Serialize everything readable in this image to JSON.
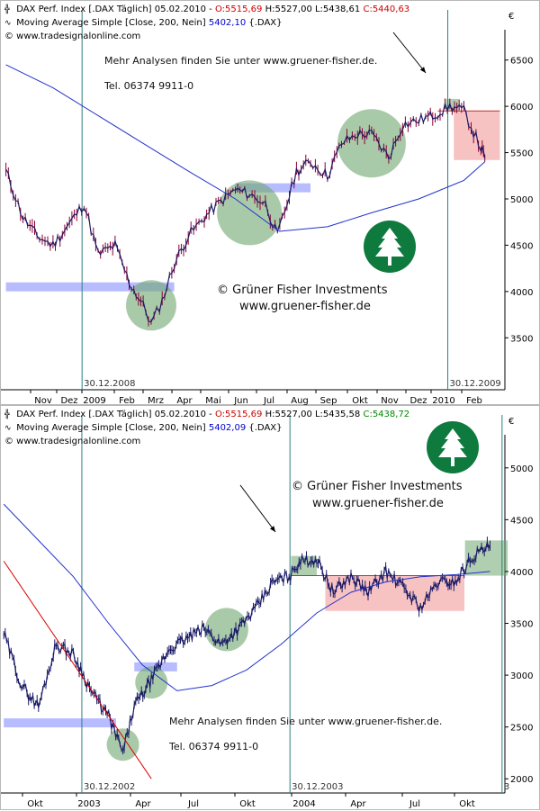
{
  "colors": {
    "price": "#1a1a66",
    "price_down": "#8a0033",
    "ma": "#2233cc",
    "trend": "#dd0000",
    "support_box": "#aab0ff",
    "green_zone": "#6fa66f",
    "red_zone": "#f4a8a8",
    "vline": "#2f7f7f",
    "logo": "#0f7a3e"
  },
  "top_chart": {
    "header": {
      "symbol": "DAX Perf. Index [.DAX Täglich] 05.02.2010 - ",
      "open": "O:5515,69",
      "hi_lo": " H:5527,00 L:5438,61 ",
      "close": "C:5440,63",
      "ma_label": "Moving Average Simple [Close, 200, Nein] ",
      "ma_value": "5402,10",
      "ma_suffix": " {.DAX}",
      "source": "© www.tradesignalonline.com"
    },
    "note_1": "Mehr Analysen finden Sie unter www.gruener-fisher.de.",
    "note_2": "Tel. 06374 9911-0",
    "brand_1": "© Grüner Fisher Investments",
    "brand_2": "www.gruener-fisher.de",
    "currency": "€",
    "vline_labels": [
      "30.12.2008",
      "30.12.2009"
    ]
  },
  "bottom_chart": {
    "header": {
      "symbol": "DAX Perf. Index [.DAX  Täglich] 05.02.2010 - ",
      "open": "O:5515,69",
      "hi_lo": " H:5527,00 L:5435,58 ",
      "close": "C:5438,72",
      "ma_label": "Moving Average Simple [Close, 200, Nein] ",
      "ma_value": "5402,09",
      "ma_suffix": " {.DAX}",
      "source": "© www.tradesignalonline.com"
    },
    "note_1": "Mehr Analysen finden Sie unter www.gruener-fisher.de.",
    "note_2": "Tel. 06374 9911-0",
    "brand_1": "© Grüner Fisher Investments",
    "brand_2": "www.gruener-fisher.de",
    "currency": "€",
    "vline_labels": [
      "30.12.2002",
      "30.12.2003",
      "3"
    ]
  },
  "chart_data": [
    {
      "type": "line",
      "title": "DAX Perf. Index [.DAX Täglich] 05.02.2010",
      "xlabel": "",
      "ylabel": "",
      "ylim": [
        3250,
        6750
      ],
      "grid": false,
      "legend": "top-left",
      "x_ticks": [
        "Nov",
        "Dez",
        "2009",
        "Feb",
        "Mrz",
        "Apr",
        "Mai",
        "Jun",
        "Jul",
        "Aug",
        "Sep",
        "Okt",
        "Nov",
        "Dez",
        "2010",
        "Feb"
      ],
      "y_ticks": [
        3500,
        4000,
        4500,
        5000,
        5500,
        6000,
        6500
      ],
      "series": [
        {
          "name": "DAX Perf. Index",
          "x": [
            "2008-10-15",
            "2008-11-01",
            "2008-11-15",
            "2008-12-01",
            "2008-12-15",
            "2009-01-01",
            "2009-01-15",
            "2009-02-01",
            "2009-02-15",
            "2009-03-01",
            "2009-03-09",
            "2009-03-20",
            "2009-04-01",
            "2009-04-15",
            "2009-05-01",
            "2009-05-15",
            "2009-06-01",
            "2009-06-15",
            "2009-07-01",
            "2009-07-13",
            "2009-08-01",
            "2009-08-15",
            "2009-09-01",
            "2009-09-15",
            "2009-10-01",
            "2009-10-15",
            "2009-11-01",
            "2009-11-15",
            "2009-12-01",
            "2009-12-15",
            "2010-01-01",
            "2010-01-15",
            "2010-02-01",
            "2010-02-05"
          ],
          "values": [
            5300,
            4800,
            4600,
            4500,
            4700,
            4950,
            4400,
            4500,
            4100,
            3850,
            3650,
            3900,
            4300,
            4600,
            4800,
            4950,
            5100,
            5050,
            4950,
            4600,
            5300,
            5400,
            5250,
            5600,
            5700,
            5700,
            5450,
            5800,
            5850,
            5900,
            6000,
            5950,
            5550,
            5440
          ]
        },
        {
          "name": "Moving Average Simple [Close, 200, Nein]",
          "x": [
            "2008-10-15",
            "2008-12-01",
            "2009-01-15",
            "2009-03-01",
            "2009-04-15",
            "2009-06-01",
            "2009-07-15",
            "2009-09-01",
            "2009-10-15",
            "2009-12-01",
            "2010-01-15",
            "2010-02-05"
          ],
          "values": [
            6450,
            6200,
            5900,
            5600,
            5300,
            5000,
            4650,
            4700,
            4850,
            5000,
            5200,
            5402
          ]
        }
      ],
      "annotations": {
        "support_lines": [
          {
            "from": "2008-10-15",
            "to": "2009-04-01",
            "value": 4050
          },
          {
            "from": "2009-06-01",
            "to": "2009-08-15",
            "value": 5120
          }
        ],
        "green_zones": [
          {
            "x": "2009-03-09",
            "value": 3850
          },
          {
            "x": "2009-06-15",
            "value": 4850
          },
          {
            "x": "2009-10-15",
            "value": 5600
          },
          {
            "from": "2009-12-28",
            "to": "2010-01-10",
            "top": 6080,
            "bottom": 5950
          }
        ],
        "red_zone": {
          "from": "2010-01-05",
          "to": "2010-02-20",
          "top": 5950,
          "bottom": 5420
        },
        "resistance_line": {
          "from": "2009-12-20",
          "to": "2010-02-20",
          "value": 5950
        },
        "vertical_lines": [
          "2008-12-30",
          "2009-12-30"
        ]
      }
    },
    {
      "type": "line",
      "title": "DAX Perf. Index [.DAX Täglich] 05.02.2010",
      "xlabel": "",
      "ylabel": "",
      "ylim": [
        1950,
        5250
      ],
      "grid": false,
      "legend": "top-left",
      "x_ticks": [
        "Okt",
        "2003",
        "Apr",
        "Jul",
        "Okt",
        "2004",
        "Apr",
        "Jul",
        "Okt"
      ],
      "y_ticks": [
        2000,
        2500,
        3000,
        3500,
        4000,
        4500,
        5000
      ],
      "series": [
        {
          "name": "DAX Perf. Index",
          "x": [
            "2002-08-15",
            "2002-09-15",
            "2002-10-15",
            "2002-11-15",
            "2002-12-15",
            "2003-01-15",
            "2003-02-15",
            "2003-03-12",
            "2003-04-01",
            "2003-05-01",
            "2003-06-01",
            "2003-07-01",
            "2003-08-01",
            "2003-09-01",
            "2003-10-01",
            "2003-11-01",
            "2003-12-01",
            "2003-12-31",
            "2004-01-15",
            "2004-02-15",
            "2004-03-15",
            "2004-04-15",
            "2004-05-15",
            "2004-06-15",
            "2004-07-15",
            "2004-08-15",
            "2004-09-15",
            "2004-10-15",
            "2004-11-15",
            "2004-12-15"
          ],
          "values": [
            3400,
            2900,
            2700,
            3300,
            3200,
            2850,
            2600,
            2250,
            2700,
            2950,
            3250,
            3350,
            3450,
            3300,
            3450,
            3650,
            3900,
            3960,
            4100,
            4120,
            3800,
            3950,
            3800,
            4000,
            3850,
            3650,
            3900,
            3900,
            4150,
            4250
          ]
        },
        {
          "name": "Moving Average Simple [Close, 200, Nein]",
          "x": [
            "2002-08-15",
            "2002-10-15",
            "2002-12-15",
            "2003-02-15",
            "2003-04-15",
            "2003-06-15",
            "2003-08-15",
            "2003-10-15",
            "2003-12-15",
            "2004-02-15",
            "2004-04-15",
            "2004-06-15",
            "2004-08-15",
            "2004-10-15",
            "2004-12-15"
          ],
          "values": [
            4650,
            4300,
            3950,
            3500,
            3100,
            2850,
            2900,
            3050,
            3300,
            3600,
            3800,
            3900,
            3950,
            3970,
            4000
          ]
        },
        {
          "name": "Trend line",
          "x": [
            "2002-08-15",
            "2003-05-01"
          ],
          "values": [
            4100,
            2000
          ]
        }
      ],
      "annotations": {
        "support_lines": [
          {
            "from": "2002-08-15",
            "to": "2003-02-28",
            "value": 2540
          },
          {
            "from": "2003-04-01",
            "to": "2003-06-15",
            "value": 3080
          }
        ],
        "green_zones": [
          {
            "x": "2003-03-12",
            "value": 2330
          },
          {
            "x": "2003-05-01",
            "value": 2930
          },
          {
            "x": "2003-09-10",
            "value": 3440
          },
          {
            "from": "2004-01-01",
            "to": "2004-02-15",
            "top": 4150,
            "bottom": 3960
          },
          {
            "from": "2004-11-01",
            "to": "2005-01-15",
            "top": 4300,
            "bottom": 3960
          }
        ],
        "red_zone": {
          "from": "2004-03-01",
          "to": "2004-10-31",
          "top": 3960,
          "bottom": 3620
        },
        "resistance_line": {
          "from": "2004-01-01",
          "to": "2004-10-31",
          "value": 3960
        },
        "vertical_lines": [
          "2002-12-30",
          "2003-12-30",
          "2005-01-05"
        ]
      }
    }
  ]
}
